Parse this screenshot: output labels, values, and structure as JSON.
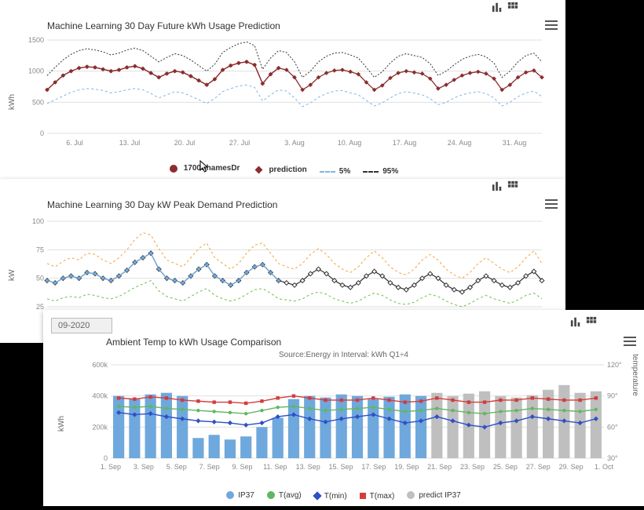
{
  "panel1": {
    "title": "Machine Learning 30 Day Future kWh Usage Prediction",
    "ylabel": "kWh",
    "ylim": [
      0,
      1500
    ],
    "yticks": [
      0,
      500,
      1000,
      1500
    ],
    "x_categories": [
      "6. Jul",
      "13. Jul",
      "20. Jul",
      "27. Jul",
      "3. Aug",
      "10. Aug",
      "17. Aug",
      "24. Aug",
      "31. Aug"
    ],
    "n_points": 63,
    "series": {
      "actual": {
        "label": "1700ShamesDr",
        "color": "#8b2e2e",
        "marker": "circle",
        "values": [
          700,
          820,
          930,
          1000,
          1050,
          1070,
          1060,
          1030,
          1000,
          1020,
          1060,
          1080,
          1040,
          970,
          900,
          960,
          1000,
          980,
          920,
          850,
          780,
          870,
          1020,
          1090,
          1130,
          1150,
          1100,
          800,
          950,
          1050
        ]
      },
      "prediction": {
        "label": "prediction",
        "color": "#8b2e2e",
        "marker": "diamond",
        "values": [
          700,
          820,
          930,
          1000,
          1050,
          1070,
          1060,
          1030,
          1000,
          1020,
          1060,
          1080,
          1040,
          970,
          900,
          960,
          1000,
          980,
          920,
          850,
          780,
          870,
          1020,
          1090,
          1130,
          1150,
          1100,
          800,
          950,
          1050,
          1020,
          900,
          700,
          780,
          900,
          970,
          1010,
          1020,
          990,
          950,
          820,
          700,
          770,
          890,
          970,
          1000,
          980,
          960,
          880,
          720,
          780,
          860,
          930,
          970,
          990,
          960,
          880,
          700,
          780,
          900,
          980,
          1010,
          900
        ]
      },
      "low": {
        "label": "5%",
        "color": "#7fb3e6",
        "dash": "3,3",
        "values": [
          480,
          540,
          600,
          660,
          700,
          720,
          710,
          690,
          650,
          670,
          700,
          720,
          700,
          640,
          570,
          620,
          670,
          650,
          600,
          540,
          480,
          560,
          670,
          720,
          760,
          780,
          740,
          520,
          620,
          700,
          680,
          570,
          430,
          490,
          580,
          640,
          680,
          690,
          650,
          620,
          530,
          440,
          490,
          570,
          640,
          670,
          650,
          620,
          560,
          460,
          500,
          570,
          620,
          650,
          670,
          640,
          570,
          440,
          500,
          590,
          650,
          680,
          590
        ]
      },
      "high": {
        "label": "95%",
        "color": "#333333",
        "dash": "2,2",
        "values": [
          930,
          1060,
          1180,
          1270,
          1330,
          1360,
          1340,
          1310,
          1260,
          1290,
          1340,
          1370,
          1330,
          1240,
          1150,
          1220,
          1280,
          1250,
          1180,
          1090,
          1000,
          1110,
          1300,
          1380,
          1440,
          1470,
          1410,
          1030,
          1210,
          1330,
          1300,
          1150,
          900,
          1000,
          1150,
          1240,
          1290,
          1300,
          1260,
          1210,
          1060,
          900,
          990,
          1130,
          1240,
          1280,
          1250,
          1220,
          1120,
          930,
          1000,
          1100,
          1190,
          1240,
          1270,
          1230,
          1130,
          900,
          1000,
          1150,
          1250,
          1290,
          1150
        ]
      }
    },
    "legend_order": [
      "actual",
      "prediction",
      "low",
      "high"
    ]
  },
  "panel2": {
    "title": "Machine Learning 30 Day kW Peak Demand Prediction",
    "ylabel": "kW",
    "ylim": [
      25,
      100
    ],
    "yticks": [
      25,
      50,
      75,
      100
    ],
    "n_points": 63,
    "series": {
      "actual": {
        "color": "#6fa8dc",
        "marker": "circle",
        "values": [
          48,
          46,
          50,
          52,
          50,
          55,
          54,
          50,
          48,
          52,
          57,
          64,
          68,
          72,
          58,
          50,
          48,
          46,
          52,
          58,
          62,
          52,
          48,
          44,
          48,
          55,
          60,
          62,
          55,
          48
        ]
      },
      "pred": {
        "color": "#333333",
        "marker": "diamond",
        "values": [
          48,
          46,
          50,
          52,
          50,
          55,
          54,
          50,
          48,
          52,
          57,
          64,
          68,
          72,
          58,
          50,
          48,
          46,
          52,
          58,
          62,
          52,
          48,
          44,
          48,
          55,
          60,
          62,
          55,
          48,
          46,
          44,
          48,
          54,
          58,
          54,
          48,
          44,
          42,
          46,
          52,
          56,
          52,
          46,
          42,
          40,
          44,
          50,
          54,
          50,
          44,
          40,
          38,
          42,
          48,
          52,
          48,
          44,
          42,
          46,
          52,
          56,
          48
        ]
      },
      "low": {
        "color": "#6cc04a",
        "dash": "3,3",
        "values": [
          32,
          30,
          33,
          34,
          33,
          36,
          35,
          33,
          32,
          34,
          38,
          42,
          45,
          48,
          39,
          34,
          32,
          30,
          34,
          38,
          41,
          35,
          32,
          30,
          32,
          36,
          40,
          41,
          37,
          32,
          31,
          30,
          32,
          36,
          38,
          36,
          32,
          30,
          28,
          30,
          34,
          37,
          35,
          31,
          28,
          27,
          29,
          33,
          36,
          34,
          30,
          27,
          25,
          28,
          32,
          35,
          32,
          30,
          28,
          31,
          35,
          37,
          32
        ]
      },
      "high": {
        "color": "#f2a33c",
        "dash": "3,3",
        "values": [
          63,
          60,
          65,
          68,
          66,
          72,
          71,
          66,
          63,
          68,
          75,
          84,
          90,
          88,
          76,
          66,
          63,
          60,
          68,
          76,
          81,
          68,
          63,
          58,
          63,
          72,
          79,
          81,
          72,
          63,
          60,
          58,
          63,
          71,
          76,
          71,
          63,
          58,
          55,
          60,
          68,
          74,
          68,
          60,
          55,
          53,
          58,
          66,
          71,
          66,
          58,
          53,
          50,
          55,
          63,
          68,
          63,
          58,
          55,
          60,
          68,
          74,
          63
        ]
      }
    }
  },
  "panel3": {
    "date_button": "09-2020",
    "title": "Ambient Temp to kWh Usage Comparison",
    "subtitle": "Source:Energy in Interval: kWh Q1÷4",
    "ylabel": "kWh",
    "ylabel2": "temperature",
    "ylim": [
      0,
      600
    ],
    "yticks": [
      0,
      200,
      400,
      600
    ],
    "ytick_fmt": "k",
    "ylim2": [
      30,
      120
    ],
    "yticks2": [
      30,
      60,
      90,
      120
    ],
    "x_categories": [
      "1. Sep",
      "3. Sep",
      "5. Sep",
      "7. Sep",
      "9. Sep",
      "11. Sep",
      "13. Sep",
      "15. Sep",
      "17. Sep",
      "19. Sep",
      "21. Sep",
      "23. Sep",
      "25. Sep",
      "27. Sep",
      "29. Sep",
      "1. Oct"
    ],
    "n_bars": 31,
    "bars_actual": {
      "color": "#6fa8dc",
      "values": [
        400,
        380,
        410,
        420,
        400,
        130,
        150,
        120,
        140,
        200,
        260,
        380,
        400,
        390,
        410,
        400,
        380,
        395,
        410,
        400
      ]
    },
    "bars_predict": {
      "color": "#bfbfbf",
      "values": [
        420,
        400,
        415,
        430,
        400,
        390,
        405,
        440,
        470,
        420,
        430
      ]
    },
    "lines": {
      "tavg": {
        "label": "T(avg)",
        "color": "#5fb85f",
        "marker": "circle",
        "values": [
          80,
          79,
          80,
          78,
          77,
          76,
          75,
          74,
          73,
          76,
          79,
          80,
          78,
          76,
          77,
          78,
          79,
          77,
          75,
          76,
          78,
          76,
          74,
          73,
          75,
          76,
          78,
          77,
          76,
          75,
          77
        ]
      },
      "tmin": {
        "label": "T(min)",
        "color": "#2e4fc6",
        "marker": "diamond",
        "values": [
          74,
          72,
          73,
          70,
          68,
          66,
          65,
          64,
          62,
          64,
          70,
          72,
          68,
          65,
          68,
          70,
          72,
          68,
          64,
          66,
          70,
          66,
          62,
          60,
          64,
          66,
          70,
          68,
          66,
          64,
          68
        ]
      },
      "tmax": {
        "label": "T(max)",
        "color": "#d43c3c",
        "marker": "square",
        "values": [
          88,
          87,
          89,
          88,
          86,
          85,
          84,
          84,
          83,
          85,
          88,
          90,
          88,
          86,
          86,
          86,
          88,
          86,
          84,
          85,
          88,
          86,
          84,
          84,
          86,
          86,
          88,
          87,
          86,
          86,
          88
        ]
      }
    },
    "legend": [
      {
        "symbol": "dot",
        "color": "#6fa8dc",
        "label": "IP37"
      },
      {
        "symbol": "dot",
        "color": "#5fb85f",
        "label": "T(avg)"
      },
      {
        "symbol": "diamond",
        "color": "#2e4fc6",
        "label": "T(min)"
      },
      {
        "symbol": "square",
        "color": "#d43c3c",
        "label": "T(max)"
      },
      {
        "symbol": "dot",
        "color": "#bfbfbf",
        "label": "predict IP37"
      }
    ]
  },
  "colors": {
    "grid": "#e4e4e4",
    "background": "#ffffff"
  }
}
